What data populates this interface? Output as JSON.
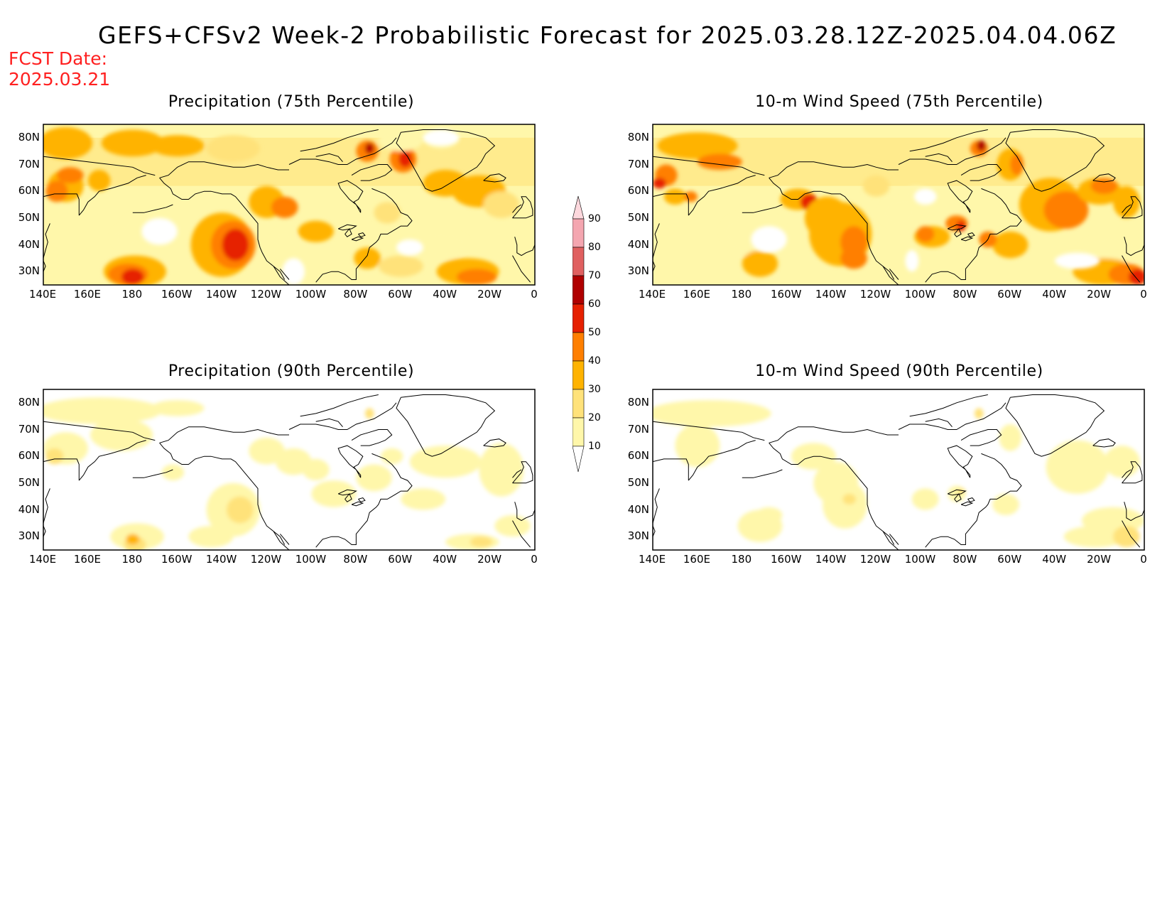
{
  "header": {
    "title": "GEFS+CFSv2 Week-2 Probabilistic Forecast for 2025.03.28.12Z-2025.04.04.06Z",
    "fcst_line1": "FCST Date:",
    "fcst_line2": "2025.03.21"
  },
  "lat_ticks": [
    "80N",
    "70N",
    "60N",
    "50N",
    "40N",
    "30N"
  ],
  "lon_ticks": [
    "140E",
    "160E",
    "180",
    "160W",
    "140W",
    "120W",
    "100W",
    "80W",
    "60W",
    "40W",
    "20W",
    "0"
  ],
  "panels": [
    {
      "id": "precip75",
      "title": "Precipitation (75th Percentile)",
      "intensity": "high"
    },
    {
      "id": "wind75",
      "title": "10-m Wind Speed (75th Percentile)",
      "intensity": "high"
    },
    {
      "id": "precip90",
      "title": "Precipitation (90th Percentile)",
      "intensity": "low"
    },
    {
      "id": "wind90",
      "title": "10-m Wind Speed (90th Percentile)",
      "intensity": "low"
    }
  ],
  "colorbar": {
    "levels": [
      "10",
      "20",
      "30",
      "40",
      "50",
      "60",
      "70",
      "80",
      "90"
    ],
    "colors": [
      "#fff7aa",
      "#ffe27a",
      "#ffb300",
      "#ff7f00",
      "#e62000",
      "#b00000",
      "#e06060",
      "#f4a6b0",
      "#fdd8dd"
    ]
  }
}
